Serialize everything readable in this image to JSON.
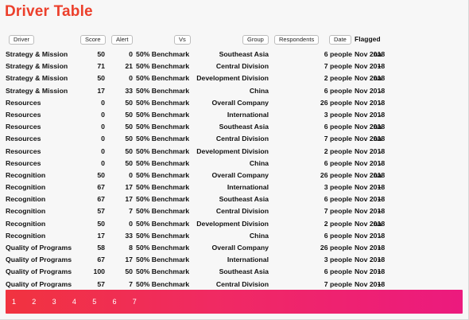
{
  "title": "Driver Table",
  "columns": {
    "driver": "Driver",
    "score": "Score",
    "alert": "Alert",
    "vs": "Vs",
    "group": "Group",
    "respondents": "Respondents",
    "date": "Date",
    "flagged": "Flagged"
  },
  "rows": [
    {
      "driver": "Strategy & Mission",
      "score": "50",
      "alert": "0",
      "vs": "50% Benchmark",
      "group": "Southeast Asia",
      "respondents": "6 people",
      "date": "Nov 2018",
      "flagged": "na"
    },
    {
      "driver": "Strategy & Mission",
      "score": "71",
      "alert": "21",
      "vs": "50% Benchmark",
      "group": "Central Division",
      "respondents": "7 people",
      "date": "Nov 2018",
      "flagged": "+"
    },
    {
      "driver": "Strategy & Mission",
      "score": "50",
      "alert": "0",
      "vs": "50% Benchmark",
      "group": "Development Division",
      "respondents": "2 people",
      "date": "Nov 2018",
      "flagged": "na"
    },
    {
      "driver": "Strategy & Mission",
      "score": "17",
      "alert": "33",
      "vs": "50% Benchmark",
      "group": "China",
      "respondents": "6 people",
      "date": "Nov 2018",
      "flagged": "-"
    },
    {
      "driver": "Resources",
      "score": "0",
      "alert": "50",
      "vs": "50% Benchmark",
      "group": "Overall Company",
      "respondents": "26 people",
      "date": "Nov 2018",
      "flagged": "-"
    },
    {
      "driver": "Resources",
      "score": "0",
      "alert": "50",
      "vs": "50% Benchmark",
      "group": "International",
      "respondents": "3 people",
      "date": "Nov 2018",
      "flagged": "-"
    },
    {
      "driver": "Resources",
      "score": "0",
      "alert": "50",
      "vs": "50% Benchmark",
      "group": "Southeast Asia",
      "respondents": "6 people",
      "date": "Nov 2018",
      "flagged": "na"
    },
    {
      "driver": "Resources",
      "score": "0",
      "alert": "50",
      "vs": "50% Benchmark",
      "group": "Central Division",
      "respondents": "7 people",
      "date": "Nov 2018",
      "flagged": "na"
    },
    {
      "driver": "Resources",
      "score": "0",
      "alert": "50",
      "vs": "50% Benchmark",
      "group": "Development Division",
      "respondents": "2 people",
      "date": "Nov 2018",
      "flagged": "-"
    },
    {
      "driver": "Resources",
      "score": "0",
      "alert": "50",
      "vs": "50% Benchmark",
      "group": "China",
      "respondents": "6 people",
      "date": "Nov 2018",
      "flagged": "-"
    },
    {
      "driver": "Recognition",
      "score": "50",
      "alert": "0",
      "vs": "50% Benchmark",
      "group": "Overall Company",
      "respondents": "26 people",
      "date": "Nov 2018",
      "flagged": "na"
    },
    {
      "driver": "Recognition",
      "score": "67",
      "alert": "17",
      "vs": "50% Benchmark",
      "group": "International",
      "respondents": "3 people",
      "date": "Nov 2018",
      "flagged": "+"
    },
    {
      "driver": "Recognition",
      "score": "67",
      "alert": "17",
      "vs": "50% Benchmark",
      "group": "Southeast Asia",
      "respondents": "6 people",
      "date": "Nov 2018",
      "flagged": "+"
    },
    {
      "driver": "Recognition",
      "score": "57",
      "alert": "7",
      "vs": "50% Benchmark",
      "group": "Central Division",
      "respondents": "7 people",
      "date": "Nov 2018",
      "flagged": "+"
    },
    {
      "driver": "Recognition",
      "score": "50",
      "alert": "0",
      "vs": "50% Benchmark",
      "group": "Development Division",
      "respondents": "2 people",
      "date": "Nov 2018",
      "flagged": "na"
    },
    {
      "driver": "Recognition",
      "score": "17",
      "alert": "33",
      "vs": "50% Benchmark",
      "group": "China",
      "respondents": "6 people",
      "date": "Nov 2018",
      "flagged": "-"
    },
    {
      "driver": "Quality of Programs",
      "score": "58",
      "alert": "8",
      "vs": "50% Benchmark",
      "group": "Overall Company",
      "respondents": "26 people",
      "date": "Nov 2018",
      "flagged": "+"
    },
    {
      "driver": "Quality of Programs",
      "score": "67",
      "alert": "17",
      "vs": "50% Benchmark",
      "group": "International",
      "respondents": "3 people",
      "date": "Nov 2018",
      "flagged": "+"
    },
    {
      "driver": "Quality of Programs",
      "score": "100",
      "alert": "50",
      "vs": "50% Benchmark",
      "group": "Southeast Asia",
      "respondents": "6 people",
      "date": "Nov 2018",
      "flagged": "+"
    },
    {
      "driver": "Quality of Programs",
      "score": "57",
      "alert": "7",
      "vs": "50% Benchmark",
      "group": "Central Division",
      "respondents": "7 people",
      "date": "Nov 2018",
      "flagged": "+"
    }
  ],
  "pagination": [
    "1",
    "2",
    "3",
    "4",
    "5",
    "6",
    "7"
  ]
}
